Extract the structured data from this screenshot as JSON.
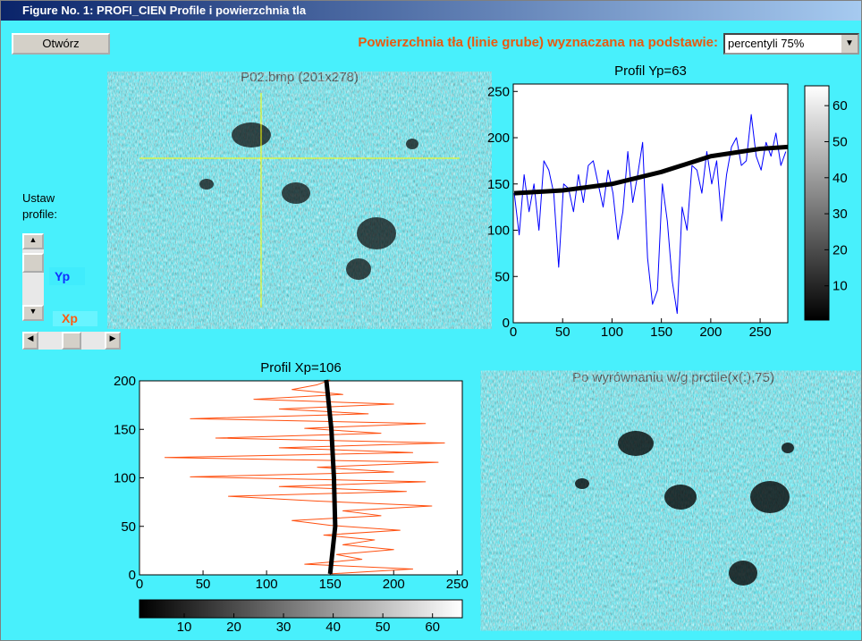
{
  "window": {
    "title": "Figure No. 1: PROFI_CIEN Profile i powierzchnia tla"
  },
  "controls": {
    "open_button": "Otwórz",
    "method_label": "Powierzchnia tła (linie grube) wyznaczana na podstawie:",
    "method_select": "percentyli 75%",
    "profile_label": "Ustaw profile:",
    "yp_label": "Yp",
    "xp_label": "Xp"
  },
  "images": {
    "original_title": "P02.bmp (201x278)",
    "corrected_title": "Po wyrównaniu w/g prctile(x(:),75)"
  },
  "chart_data": [
    {
      "type": "line",
      "orientation": "vertical",
      "title": "Profil Yp=63",
      "xlim": [
        0,
        278
      ],
      "xticks": [
        0,
        50,
        100,
        150,
        200,
        250
      ],
      "ylim": [
        0,
        258
      ],
      "yticks": [
        0,
        50,
        100,
        150,
        200,
        250
      ],
      "series": [
        {
          "color": "#0000ff",
          "width": 1,
          "x": [
            1,
            6,
            11,
            16,
            21,
            26,
            31,
            36,
            41,
            46,
            51,
            56,
            61,
            66,
            71,
            76,
            81,
            86,
            91,
            96,
            101,
            106,
            111,
            116,
            121,
            126,
            131,
            136,
            141,
            146,
            151,
            156,
            161,
            166,
            171,
            176,
            181,
            186,
            191,
            196,
            201,
            206,
            211,
            216,
            221,
            226,
            231,
            236,
            241,
            246,
            251,
            256,
            261,
            266,
            271,
            276
          ],
          "values": [
            140,
            95,
            160,
            120,
            150,
            100,
            175,
            165,
            140,
            60,
            150,
            145,
            120,
            160,
            130,
            170,
            175,
            150,
            125,
            165,
            140,
            90,
            120,
            185,
            130,
            160,
            195,
            70,
            20,
            35,
            150,
            110,
            45,
            10,
            125,
            100,
            170,
            165,
            140,
            185,
            150,
            175,
            110,
            160,
            190,
            200,
            170,
            175,
            225,
            180,
            165,
            195,
            180,
            205,
            170,
            185
          ]
        },
        {
          "color": "#000000",
          "width": 5,
          "x": [
            1,
            50,
            100,
            150,
            200,
            250,
            278
          ],
          "values": [
            140,
            143,
            150,
            163,
            180,
            188,
            190
          ]
        }
      ]
    },
    {
      "type": "line",
      "orientation": "horizontal",
      "title": "Profil Xp=106",
      "xlim": [
        0,
        254
      ],
      "xticks": [
        0,
        50,
        100,
        150,
        200,
        250
      ],
      "ylim": [
        0,
        200
      ],
      "yticks": [
        0,
        50,
        100,
        150,
        200
      ],
      "series": [
        {
          "color": "#ff5010",
          "width": 1,
          "x": [
            1,
            6,
            11,
            16,
            21,
            26,
            31,
            36,
            41,
            46,
            51,
            56,
            61,
            66,
            71,
            76,
            81,
            86,
            91,
            96,
            101,
            106,
            111,
            116,
            121,
            126,
            131,
            136,
            141,
            146,
            151,
            156,
            161,
            166,
            171,
            176,
            181,
            186,
            191,
            196,
            201
          ],
          "values": [
            150,
            215,
            130,
            175,
            155,
            200,
            160,
            185,
            145,
            205,
            150,
            120,
            190,
            160,
            230,
            140,
            70,
            210,
            110,
            225,
            40,
            200,
            140,
            235,
            20,
            215,
            110,
            240,
            60,
            190,
            130,
            225,
            40,
            180,
            110,
            200,
            90,
            160,
            120,
            140,
            150
          ]
        },
        {
          "color": "#000000",
          "width": 5,
          "x": [
            1,
            50,
            100,
            150,
            201
          ],
          "values": [
            150,
            154,
            153,
            151,
            147
          ]
        }
      ]
    },
    {
      "type": "colorbar",
      "orientation": "vertical",
      "ylim": [
        0.5,
        65.5
      ],
      "yticks": [
        10,
        20,
        30,
        40,
        50,
        60
      ]
    },
    {
      "type": "colorbar",
      "orientation": "horizontal",
      "xlim": [
        1,
        66
      ],
      "xticks": [
        10,
        20,
        30,
        40,
        50,
        60
      ]
    }
  ]
}
